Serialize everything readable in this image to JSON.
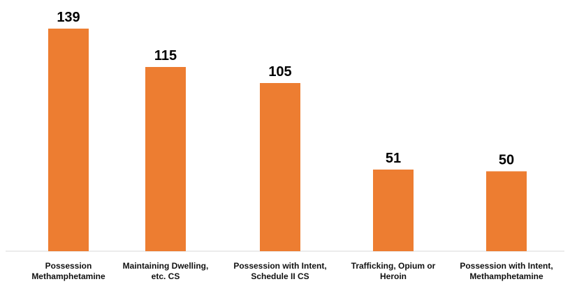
{
  "chart_data": {
    "type": "bar",
    "categories": [
      [
        "Possession",
        "Methamphetamine"
      ],
      [
        "Maintaining Dwelling,",
        "etc. CS"
      ],
      [
        "Possession with Intent,",
        "Schedule II CS"
      ],
      [
        "Trafficking, Opium or",
        "Heroin"
      ],
      [
        "Possession with Intent,",
        "Methamphetamine"
      ]
    ],
    "values": [
      139,
      115,
      105,
      51,
      50
    ],
    "data_labels": [
      "139",
      "115",
      "105",
      "51",
      "50"
    ],
    "ylim": [
      0,
      139
    ],
    "grid": false,
    "legend": "none",
    "title": "",
    "xlabel": "",
    "ylabel": "",
    "colors": {
      "bar": "#ED7D31",
      "label_text": "#000000",
      "axis": "#D9D9D9"
    }
  }
}
